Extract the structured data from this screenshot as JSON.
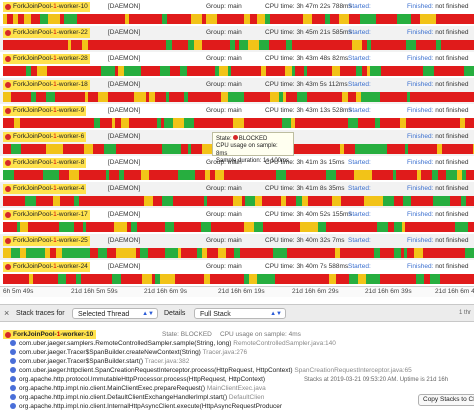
{
  "threads": [
    {
      "name_a": "ForkJoinPool-",
      "name_b": "1",
      "name_c": "-worker-10",
      "daemon": "[DAEMON]",
      "group_label": "Group:",
      "group": "main",
      "cpu_label": "CPU time:",
      "cpu": "3h 47m 22s 788ms",
      "started_label": "Started:",
      "started": "",
      "finished_label": "Finished:",
      "finished": "not finished",
      "seed": 3
    },
    {
      "name_a": "ForkJoinPool-",
      "name_b": "1",
      "name_c": "-worker-22",
      "daemon": "[DAEMON]",
      "group_label": "Group:",
      "group": "main",
      "cpu_label": "CPU time:",
      "cpu": "3h 45m 21s 585ms",
      "started_label": "Started:",
      "started": "",
      "finished_label": "Finished:",
      "finished": "not finished",
      "seed": 7
    },
    {
      "name_a": "ForkJoinPool-",
      "name_b": "1",
      "name_c": "-worker-28",
      "daemon": "[DAEMON]",
      "group_label": "Group:",
      "group": "main",
      "cpu_label": "CPU time:",
      "cpu": "3h 43m 48s 82ms",
      "started_label": "Started:",
      "started": "",
      "finished_label": "Finished:",
      "finished": "not finished",
      "seed": 11
    },
    {
      "name_a": "ForkJoinPool-",
      "name_b": "1",
      "name_c": "-worker-18",
      "daemon": "[DAEMON]",
      "group_label": "Group:",
      "group": "main",
      "cpu_label": "CPU time:",
      "cpu": "3h 43m 5s 112ms",
      "started_label": "Started:",
      "started": "",
      "finished_label": "Finished:",
      "finished": "not finished",
      "seed": 13
    },
    {
      "name_a": "ForkJoinPool-",
      "name_b": "1",
      "name_c": "-worker-9",
      "daemon": "[DAEMON]",
      "group_label": "Group:",
      "group": "main",
      "cpu_label": "CPU time:",
      "cpu": "3h 43m 13s 528ms",
      "started_label": "Started:",
      "started": "",
      "finished_label": "Finished:",
      "finished": "not finished",
      "seed": 17
    },
    {
      "name_a": "ForkJoinPool-",
      "name_b": "1",
      "name_c": "-worker-6",
      "daemon": "[DAEMON]",
      "group_label": "",
      "group": "",
      "cpu_label": "",
      "cpu": "",
      "started_label": "",
      "started": "",
      "finished_label": "Finished:",
      "finished": "not finished",
      "seed": 19
    },
    {
      "name_a": "ForkJoinPool-",
      "name_b": "1",
      "name_c": "-worker-8",
      "daemon": "[DAEMON]",
      "group_label": "Group:",
      "group": "main",
      "cpu_label": "CPU time:",
      "cpu": "3h 41m 3s 15ms",
      "started_label": "Started:",
      "started": "",
      "finished_label": "Finished:",
      "finished": "not finished",
      "seed": 23
    },
    {
      "name_a": "ForkJoinPool-",
      "name_b": "1",
      "name_c": "-worker-4",
      "daemon": "[DAEMON]",
      "group_label": "Group:",
      "group": "main",
      "cpu_label": "CPU time:",
      "cpu": "3h 41m 8s 35ms",
      "started_label": "Started:",
      "started": "",
      "finished_label": "Finished:",
      "finished": "not finished",
      "seed": 29
    },
    {
      "name_a": "ForkJoinPool-",
      "name_b": "1",
      "name_c": "-worker-17",
      "daemon": "[DAEMON]",
      "group_label": "Group:",
      "group": "main",
      "cpu_label": "CPU time:",
      "cpu": "3h 40m 52s 155ms",
      "started_label": "Started:",
      "started": "",
      "finished_label": "Finished:",
      "finished": "not finished",
      "seed": 31
    },
    {
      "name_a": "ForkJoinPool-",
      "name_b": "1",
      "name_c": "-worker-25",
      "daemon": "[DAEMON]",
      "group_label": "Group:",
      "group": "main",
      "cpu_label": "CPU time:",
      "cpu": "3h 40m 32s 7ms",
      "started_label": "Started:",
      "started": "",
      "finished_label": "Finished:",
      "finished": "not finished",
      "seed": 37
    },
    {
      "name_a": "ForkJoinPool-",
      "name_b": "1",
      "name_c": "-worker-24",
      "daemon": "[DAEMON]",
      "group_label": "Group:",
      "group": "main",
      "cpu_label": "CPU time:",
      "cpu": "3h 40m 7s 588ms",
      "started_label": "Started:",
      "started": "",
      "finished_label": "Finished:",
      "finished": "not finished",
      "seed": 41
    }
  ],
  "popup": {
    "state_label": "State:",
    "state": "BLOCKED",
    "cpu_line": "CPU usage on sample: 8ms",
    "duration_line": "Sample duration: 1s 100ms"
  },
  "timeline": [
    "6h 5m 49s",
    "21d 16h 5m 59s",
    "21d 16h 6m 9s",
    "21d 16h 6m 19s",
    "21d 16h 6m 29s",
    "21d 16h 6m 39s",
    "21d 16h 6m 49s"
  ],
  "toolbar": {
    "close_glyph": "×",
    "stack_traces_for": "Stack traces for",
    "selected_thread": "Selected Thread",
    "details_label": "Details",
    "full_stack": "Full Stack",
    "side_hint": "1 thr"
  },
  "stack": {
    "thread_a": "ForkJoinPool-",
    "thread_b": "1",
    "thread_c": "-worker-10",
    "state": "State: BLOCKED",
    "cpu_usage": "CPU usage on sample: 4ms",
    "frames": [
      {
        "method": "com.uber.jaeger.samplers.RemoteControlledSampler.sample(String, long)",
        "src": "RemoteControlledSampler.java:140"
      },
      {
        "method": "com.uber.jaeger.Tracer$SpanBuilder.createNewContext(String)",
        "src": "Tracer.java:276"
      },
      {
        "method": "com.uber.jaeger.Tracer$SpanBuilder.start()",
        "src": "Tracer.java:382"
      },
      {
        "method": "com.uber.jaeger.httpclient.SpanCreationRequestInterceptor.process(HttpRequest, HttpContext)",
        "src": "SpanCreationRequestInterceptor.java:65"
      },
      {
        "method": "org.apache.http.protocol.ImmutableHttpProcessor.process(HttpRequest, HttpContext)",
        "src": ""
      },
      {
        "method": "org.apache.http.impl.nio.client.MainClientExec.prepareRequest()",
        "src": "MainClientExec.java"
      },
      {
        "method": "org.apache.http.impl.nio.client.DefaultClientExchangeHandlerImpl.start()",
        "src": "DefaultClien"
      },
      {
        "method": "org.apache.http.impl.nio.client.InternalHttpAsyncClient.execute(HttpAsyncRequestProducer",
        "src": ""
      }
    ],
    "stacks_at": "Stacks at 2019-03-21 09:53:20 AM. Uptime is 21d 16h",
    "copy_button": "Copy Stacks to Cl"
  },
  "colors": {
    "running": "#27ae3f",
    "blocked": "#e01b1b",
    "waiting": "#f2c318",
    "yellow_highlight": "#ffe24d",
    "link_blue": "#3a6fcf"
  }
}
